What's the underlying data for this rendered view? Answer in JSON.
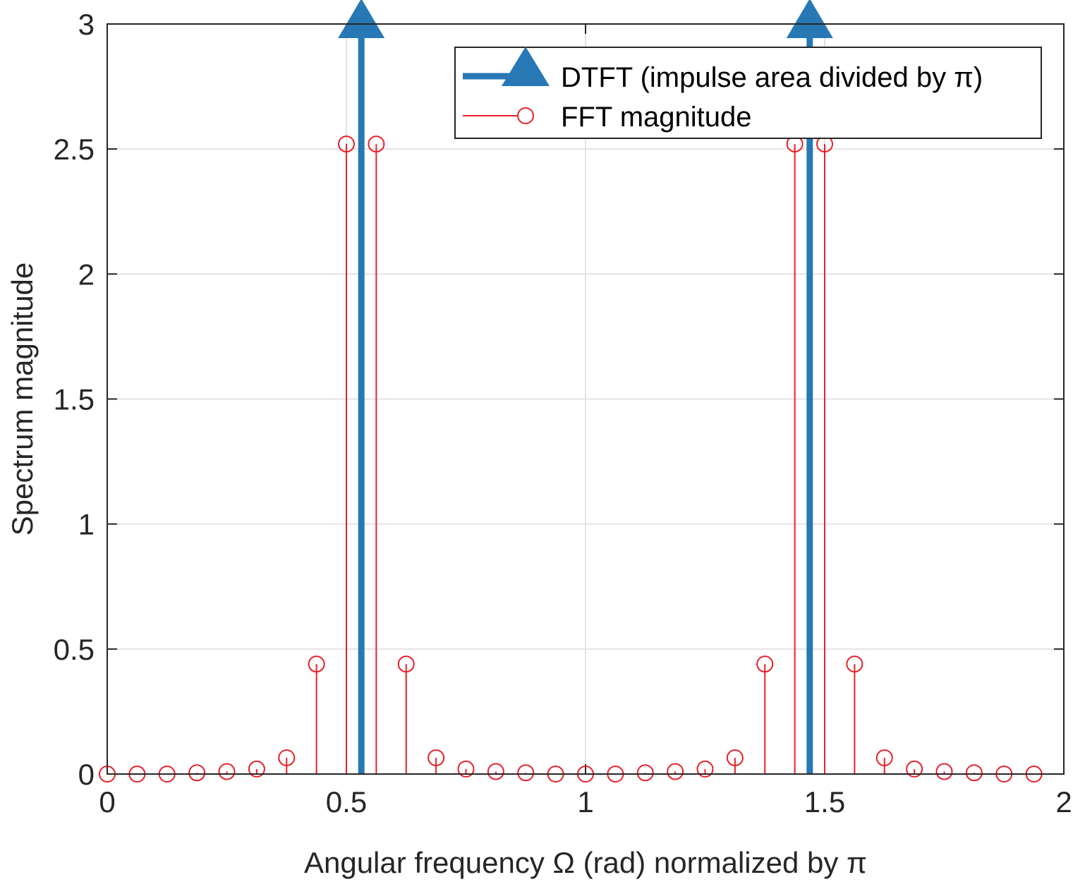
{
  "chart_data": {
    "type": "stem",
    "xlabel": "Angular frequency Ω (rad) normalized by π",
    "ylabel": "Spectrum magnitude",
    "xlim": [
      0,
      2
    ],
    "ylim": [
      0,
      3
    ],
    "x_ticks": [
      "0",
      "0.5",
      "1",
      "1.5",
      "2"
    ],
    "y_ticks": [
      "0",
      "0.5",
      "1",
      "1.5",
      "2",
      "2.5",
      "3"
    ],
    "grid": true,
    "legend_position": "top-right",
    "series": [
      {
        "name": "DTFT (impulse area divided by π)",
        "style": "impulse-arrow",
        "color": "#2878B5",
        "x": [
          0.53125,
          1.46875
        ],
        "values": [
          3,
          3
        ]
      },
      {
        "name": "FFT magnitude",
        "style": "stem-circle",
        "color": "#E8202A",
        "x": [
          0,
          0.0625,
          0.125,
          0.1875,
          0.25,
          0.3125,
          0.375,
          0.4375,
          0.5,
          0.5625,
          0.625,
          0.6875,
          0.75,
          0.8125,
          0.875,
          0.9375,
          1,
          1.0625,
          1.125,
          1.1875,
          1.25,
          1.3125,
          1.375,
          1.4375,
          1.5,
          1.5625,
          1.625,
          1.6875,
          1.75,
          1.8125,
          1.875,
          1.9375
        ],
        "values": [
          0,
          0,
          0,
          0.005,
          0.01,
          0.02,
          0.065,
          0.44,
          2.52,
          2.52,
          0.44,
          0.065,
          0.02,
          0.01,
          0.005,
          0,
          0,
          0,
          0.005,
          0.01,
          0.02,
          0.065,
          0.44,
          2.52,
          2.52,
          0.44,
          0.065,
          0.02,
          0.01,
          0.005,
          0,
          0
        ]
      }
    ]
  }
}
